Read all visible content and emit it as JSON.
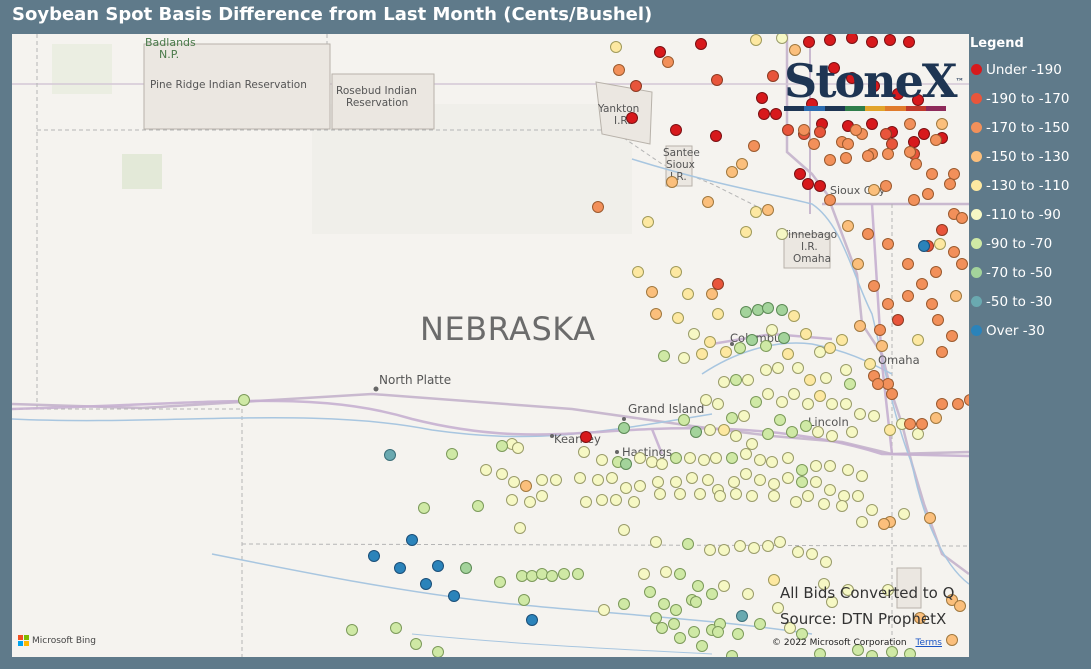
{
  "title": "Soybean Spot Basis Difference from Last Month (Cents/Bushel)",
  "legend": {
    "title": "Legend",
    "items": [
      {
        "label": "Under -190",
        "color": "#d7191c"
      },
      {
        "label": "-190 to -170",
        "color": "#e8553b"
      },
      {
        "label": "-170 to -150",
        "color": "#f2905a"
      },
      {
        "label": "-150 to -130",
        "color": "#fbbf7c"
      },
      {
        "label": "-130 to -110",
        "color": "#fde8a1"
      },
      {
        "label": "-110 to -90",
        "color": "#f6f8c4"
      },
      {
        "label": "-90 to -70",
        "color": "#cfe9a5"
      },
      {
        "label": "-70 to -50",
        "color": "#a3d39b"
      },
      {
        "label": "-50 to -30",
        "color": "#6aa9b0"
      },
      {
        "label": "Over -30",
        "color": "#2b83ba"
      }
    ]
  },
  "map": {
    "state_label": "NEBRASKA",
    "labels": {
      "badlands": "Badlands",
      "np": "N.P.",
      "pine_ridge": "Pine Ridge Indian Reservation",
      "rosebud1": "Rosebud Indian",
      "rosebud2": "Reservation",
      "yankton": "Yankton",
      "yankton_ir": "I.R.",
      "santee": "Santee",
      "santee_sioux": "Sioux",
      "santee_ir": "I.R.",
      "winnebago": "Winnebago",
      "winnebago_ir": "I.R.",
      "omaha_res": "Omaha",
      "sioux_city": "Sioux City",
      "columbus": "Columbus",
      "omaha": "Omaha",
      "north_platte": "North Platte",
      "grand_island": "Grand Island",
      "kearney": "Kearney",
      "hastings": "Hastings",
      "lincoln": "Lincoln"
    },
    "source_line1": "All Bids Converted to Q",
    "source_line2": "Source: DTN ProphetX",
    "copyright": "© 2022 Microsoft Corporation",
    "terms": "Terms",
    "bing": "Microsoft Bing",
    "logo_text": "StoneX",
    "logo_tm": "™"
  }
}
